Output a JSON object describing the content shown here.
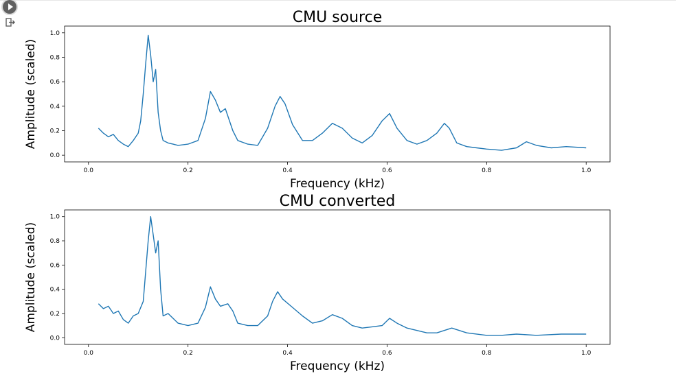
{
  "cell": {
    "run_icon": "play-icon",
    "output_icon": "output-exit-icon"
  },
  "chart_data": [
    {
      "type": "line",
      "title": "CMU source",
      "xlabel": "Frequency (kHz)",
      "ylabel": "Amplitude (scaled)",
      "xlim": [
        0.0,
        1.0
      ],
      "ylim": [
        0.0,
        1.0
      ],
      "xticks": [
        "0.0",
        "0.2",
        "0.4",
        "0.6",
        "0.8",
        "1.0"
      ],
      "yticks": [
        "0.0",
        "0.2",
        "0.4",
        "0.6",
        "0.8",
        "1.0"
      ],
      "grid": false,
      "line_color": "#1f77b4",
      "series": [
        {
          "x": [
            0.02,
            0.03,
            0.04,
            0.05,
            0.06,
            0.07,
            0.08,
            0.09,
            0.1,
            0.105,
            0.11,
            0.115,
            0.12,
            0.125,
            0.13,
            0.135,
            0.14,
            0.145,
            0.15,
            0.16,
            0.17,
            0.18,
            0.2,
            0.22,
            0.235,
            0.245,
            0.255,
            0.265,
            0.275,
            0.29,
            0.3,
            0.32,
            0.34,
            0.36,
            0.375,
            0.385,
            0.395,
            0.41,
            0.43,
            0.45,
            0.47,
            0.49,
            0.51,
            0.53,
            0.55,
            0.57,
            0.59,
            0.605,
            0.62,
            0.64,
            0.66,
            0.68,
            0.7,
            0.715,
            0.725,
            0.74,
            0.76,
            0.78,
            0.8,
            0.83,
            0.86,
            0.88,
            0.9,
            0.93,
            0.96,
            1.0
          ],
          "y": [
            0.22,
            0.18,
            0.15,
            0.17,
            0.12,
            0.09,
            0.07,
            0.12,
            0.18,
            0.28,
            0.5,
            0.75,
            0.98,
            0.82,
            0.6,
            0.7,
            0.35,
            0.2,
            0.12,
            0.1,
            0.09,
            0.08,
            0.09,
            0.12,
            0.3,
            0.52,
            0.45,
            0.35,
            0.38,
            0.2,
            0.12,
            0.09,
            0.08,
            0.22,
            0.4,
            0.48,
            0.42,
            0.25,
            0.12,
            0.12,
            0.18,
            0.26,
            0.22,
            0.14,
            0.1,
            0.16,
            0.28,
            0.34,
            0.22,
            0.12,
            0.09,
            0.12,
            0.18,
            0.26,
            0.22,
            0.1,
            0.07,
            0.06,
            0.05,
            0.04,
            0.06,
            0.11,
            0.08,
            0.06,
            0.07,
            0.06
          ]
        }
      ]
    },
    {
      "type": "line",
      "title": "CMU converted",
      "xlabel": "Frequency (kHz)",
      "ylabel": "Amplitude (scaled)",
      "xlim": [
        0.0,
        1.0
      ],
      "ylim": [
        0.0,
        1.0
      ],
      "xticks": [
        "0.0",
        "0.2",
        "0.4",
        "0.6",
        "0.8",
        "1.0"
      ],
      "yticks": [
        "0.0",
        "0.2",
        "0.4",
        "0.6",
        "0.8",
        "1.0"
      ],
      "grid": false,
      "line_color": "#1f77b4",
      "series": [
        {
          "x": [
            0.02,
            0.03,
            0.04,
            0.05,
            0.06,
            0.07,
            0.08,
            0.09,
            0.1,
            0.11,
            0.115,
            0.12,
            0.125,
            0.13,
            0.135,
            0.14,
            0.145,
            0.15,
            0.16,
            0.18,
            0.2,
            0.22,
            0.235,
            0.245,
            0.255,
            0.265,
            0.28,
            0.29,
            0.3,
            0.32,
            0.34,
            0.36,
            0.37,
            0.38,
            0.39,
            0.41,
            0.43,
            0.45,
            0.47,
            0.49,
            0.51,
            0.53,
            0.55,
            0.57,
            0.59,
            0.605,
            0.62,
            0.64,
            0.66,
            0.68,
            0.7,
            0.73,
            0.76,
            0.8,
            0.83,
            0.86,
            0.9,
            0.95,
            1.0
          ],
          "y": [
            0.28,
            0.24,
            0.26,
            0.2,
            0.22,
            0.15,
            0.12,
            0.18,
            0.2,
            0.3,
            0.55,
            0.8,
            1.0,
            0.85,
            0.7,
            0.8,
            0.4,
            0.18,
            0.2,
            0.12,
            0.1,
            0.12,
            0.25,
            0.42,
            0.32,
            0.26,
            0.28,
            0.22,
            0.12,
            0.1,
            0.1,
            0.18,
            0.3,
            0.38,
            0.32,
            0.25,
            0.18,
            0.12,
            0.14,
            0.19,
            0.16,
            0.1,
            0.08,
            0.09,
            0.1,
            0.16,
            0.12,
            0.08,
            0.06,
            0.04,
            0.04,
            0.08,
            0.04,
            0.02,
            0.02,
            0.03,
            0.02,
            0.03,
            0.03
          ]
        }
      ]
    }
  ]
}
